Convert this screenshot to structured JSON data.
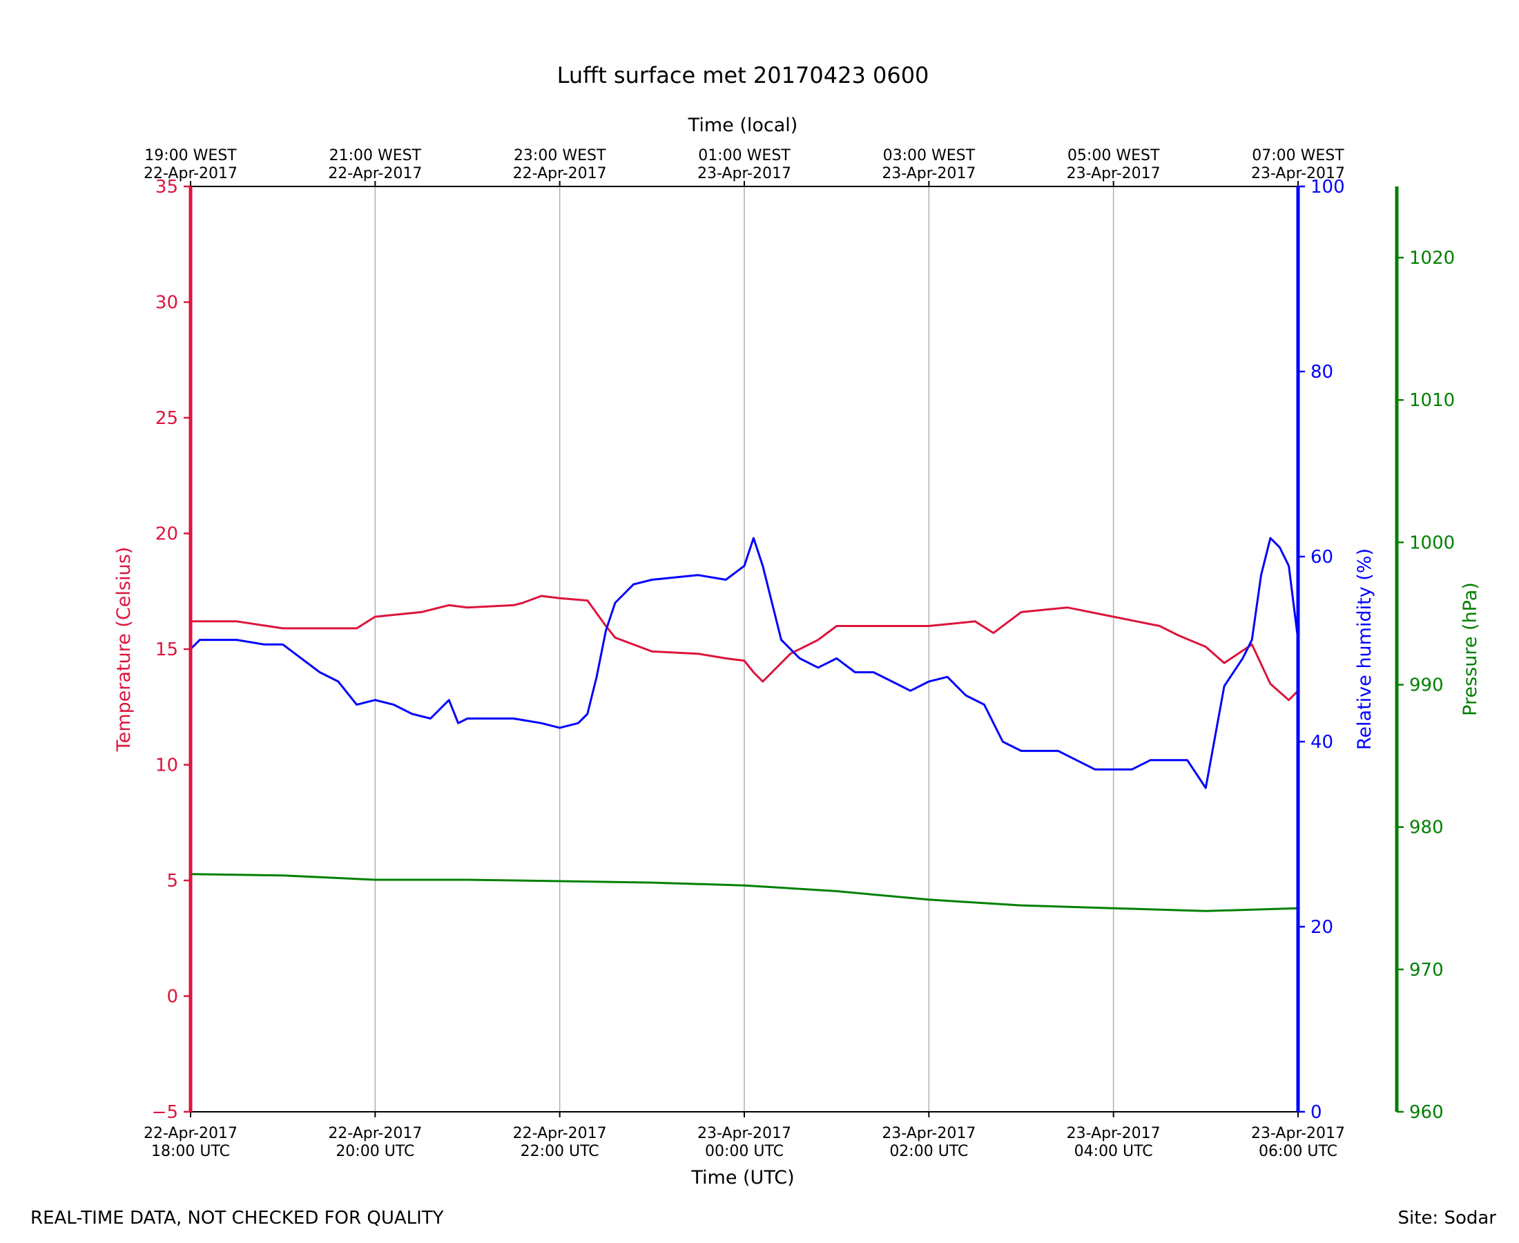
{
  "chart_data": {
    "type": "line",
    "title": "Lufft surface met 20170423 0600",
    "xlabel": "Time (UTC)",
    "xlabel_top": "Time (local)",
    "x_unit": "hours since 22-Apr-2017 18:00 UTC",
    "xlim": [
      0,
      12
    ],
    "xticks_bottom": [
      {
        "x": 0,
        "line1": "22-Apr-2017",
        "line2": "18:00 UTC"
      },
      {
        "x": 2,
        "line1": "22-Apr-2017",
        "line2": "20:00 UTC"
      },
      {
        "x": 4,
        "line1": "22-Apr-2017",
        "line2": "22:00 UTC"
      },
      {
        "x": 6,
        "line1": "23-Apr-2017",
        "line2": "00:00 UTC"
      },
      {
        "x": 8,
        "line1": "23-Apr-2017",
        "line2": "02:00 UTC"
      },
      {
        "x": 10,
        "line1": "23-Apr-2017",
        "line2": "04:00 UTC"
      },
      {
        "x": 12,
        "line1": "23-Apr-2017",
        "line2": "06:00 UTC"
      }
    ],
    "xticks_top": [
      {
        "x": 0,
        "line1": "19:00 WEST",
        "line2": "22-Apr-2017"
      },
      {
        "x": 2,
        "line1": "21:00 WEST",
        "line2": "22-Apr-2017"
      },
      {
        "x": 4,
        "line1": "23:00 WEST",
        "line2": "22-Apr-2017"
      },
      {
        "x": 6,
        "line1": "01:00 WEST",
        "line2": "23-Apr-2017"
      },
      {
        "x": 8,
        "line1": "03:00 WEST",
        "line2": "23-Apr-2017"
      },
      {
        "x": 10,
        "line1": "05:00 WEST",
        "line2": "23-Apr-2017"
      },
      {
        "x": 12,
        "line1": "07:00 WEST",
        "line2": "23-Apr-2017"
      }
    ],
    "grid_x": true,
    "axes": [
      {
        "id": "temp",
        "label": "Temperature (Celsius)",
        "color": "#dc143c",
        "ylim": [
          -5,
          35
        ],
        "ticks": [
          -5,
          0,
          5,
          10,
          15,
          20,
          25,
          30,
          35
        ],
        "side": "left"
      },
      {
        "id": "rh",
        "label": "Relative humidity (%)",
        "color": "#0000ff",
        "ylim": [
          0,
          100
        ],
        "ticks": [
          0,
          20,
          40,
          60,
          80,
          100
        ],
        "side": "right"
      },
      {
        "id": "pres",
        "label": "Pressure (hPa)",
        "color": "#008000",
        "ylim": [
          960,
          1025
        ],
        "ticks": [
          960,
          970,
          980,
          990,
          1000,
          1010,
          1020
        ],
        "side": "right-outer"
      }
    ],
    "series": [
      {
        "name": "Temperature",
        "axis": "temp",
        "color": "#dc143c",
        "x": [
          0,
          0.5,
          1,
          1.5,
          1.8,
          2,
          2.5,
          2.8,
          3,
          3.5,
          3.6,
          3.8,
          4,
          4.3,
          4.5,
          4.6,
          5,
          5.5,
          5.8,
          6,
          6.1,
          6.2,
          6.5,
          6.8,
          7,
          7.5,
          8,
          8.5,
          8.7,
          9,
          9.5,
          10,
          10.5,
          10.7,
          11,
          11.2,
          11.5,
          11.7,
          11.9,
          12
        ],
        "y": [
          16.2,
          16.2,
          15.9,
          15.9,
          15.9,
          16.4,
          16.6,
          16.9,
          16.8,
          16.9,
          17.0,
          17.3,
          17.2,
          17.1,
          16.0,
          15.5,
          14.9,
          14.8,
          14.6,
          14.5,
          14.0,
          13.6,
          14.8,
          15.4,
          16.0,
          16.0,
          16.0,
          16.2,
          15.7,
          16.6,
          16.8,
          16.4,
          16.0,
          15.6,
          15.1,
          14.4,
          15.2,
          13.5,
          12.8,
          13.2
        ]
      },
      {
        "name": "Relative humidity",
        "axis": "rh",
        "color": "#0000ff",
        "x": [
          0,
          0.1,
          0.5,
          0.8,
          1.0,
          1.2,
          1.4,
          1.6,
          1.8,
          2.0,
          2.2,
          2.4,
          2.6,
          2.8,
          2.9,
          3.0,
          3.5,
          3.8,
          4.0,
          4.2,
          4.3,
          4.4,
          4.5,
          4.6,
          4.8,
          5.0,
          5.5,
          5.8,
          6.0,
          6.1,
          6.2,
          6.3,
          6.4,
          6.6,
          6.8,
          7.0,
          7.2,
          7.4,
          7.6,
          7.8,
          8.0,
          8.2,
          8.4,
          8.6,
          8.7,
          8.8,
          9.0,
          9.2,
          9.4,
          9.6,
          9.8,
          10.0,
          10.2,
          10.4,
          10.6,
          10.8,
          11.0,
          11.2,
          11.4,
          11.5,
          11.6,
          11.7,
          11.8,
          11.9,
          12.0
        ],
        "y": [
          50,
          51,
          51,
          50.5,
          50.5,
          49,
          47.5,
          46.5,
          44,
          44.5,
          44,
          43,
          42.5,
          44.5,
          42,
          42.5,
          42.5,
          42,
          41.5,
          42,
          43,
          47,
          52,
          55,
          57,
          57.5,
          58,
          57.5,
          59,
          62,
          59,
          55,
          51,
          49,
          48,
          49,
          47.5,
          47.5,
          46.5,
          45.5,
          46.5,
          47,
          45,
          44,
          42,
          40,
          39,
          39,
          39,
          38,
          37,
          37,
          37,
          38,
          38,
          38,
          35,
          46,
          49,
          51,
          58,
          62,
          61,
          59,
          51
        ]
      },
      {
        "name": "Pressure",
        "axis": "pres",
        "color": "#008000",
        "x": [
          0,
          1,
          2,
          3,
          4,
          5,
          6,
          7,
          8,
          9,
          10,
          11,
          12
        ],
        "y": [
          976.7,
          976.6,
          976.3,
          976.3,
          976.2,
          976.1,
          975.9,
          975.5,
          974.9,
          974.5,
          974.3,
          974.1,
          974.3
        ]
      }
    ]
  },
  "footer": {
    "left": "REAL-TIME DATA, NOT CHECKED FOR QUALITY",
    "right": "Site: Sodar"
  }
}
